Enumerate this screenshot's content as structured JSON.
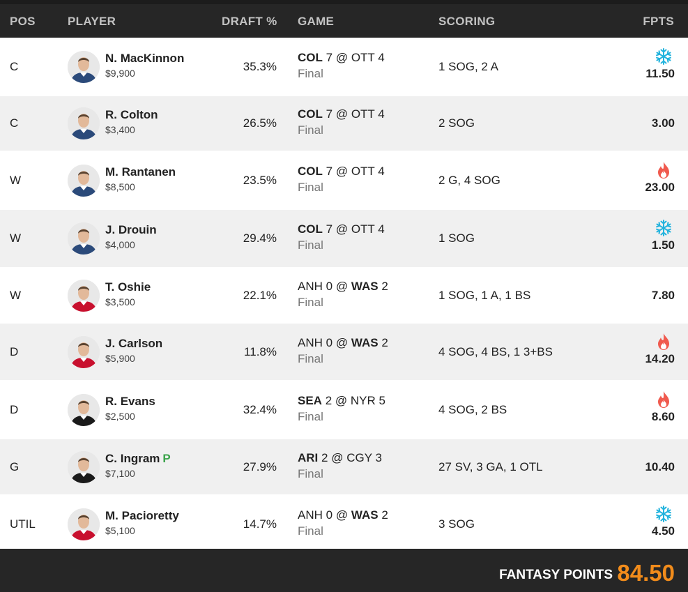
{
  "header": {
    "pos": "POS",
    "player": "PLAYER",
    "draft": "DRAFT %",
    "game": "GAME",
    "scoring": "SCORING",
    "fpts": "FPTS"
  },
  "rows": [
    {
      "pos": "C",
      "name": "N. MacKinnon",
      "badge": "",
      "salary": "$9,900",
      "draft": "35.3%",
      "away": "COL",
      "away_score": "7",
      "at": "@",
      "home": "OTT",
      "home_score": "4",
      "winner": "away",
      "status": "Final",
      "scoring": "1 SOG, 2 A",
      "fpts": "11.50",
      "icon": "snowflake-icon",
      "jersey": "#2b4a7a"
    },
    {
      "pos": "C",
      "name": "R. Colton",
      "badge": "",
      "salary": "$3,400",
      "draft": "26.5%",
      "away": "COL",
      "away_score": "7",
      "at": "@",
      "home": "OTT",
      "home_score": "4",
      "winner": "away",
      "status": "Final",
      "scoring": "2 SOG",
      "fpts": "3.00",
      "icon": "",
      "jersey": "#2b4a7a"
    },
    {
      "pos": "W",
      "name": "M. Rantanen",
      "badge": "",
      "salary": "$8,500",
      "draft": "23.5%",
      "away": "COL",
      "away_score": "7",
      "at": "@",
      "home": "OTT",
      "home_score": "4",
      "winner": "away",
      "status": "Final",
      "scoring": "2 G, 4 SOG",
      "fpts": "23.00",
      "icon": "flame-icon",
      "jersey": "#2b4a7a"
    },
    {
      "pos": "W",
      "name": "J. Drouin",
      "badge": "",
      "salary": "$4,000",
      "draft": "29.4%",
      "away": "COL",
      "away_score": "7",
      "at": "@",
      "home": "OTT",
      "home_score": "4",
      "winner": "away",
      "status": "Final",
      "scoring": "1 SOG",
      "fpts": "1.50",
      "icon": "snowflake-icon",
      "jersey": "#2b4a7a"
    },
    {
      "pos": "W",
      "name": "T. Oshie",
      "badge": "",
      "salary": "$3,500",
      "draft": "22.1%",
      "away": "ANH",
      "away_score": "0",
      "at": "@",
      "home": "WAS",
      "home_score": "2",
      "winner": "home",
      "status": "Final",
      "scoring": "1 SOG, 1 A, 1 BS",
      "fpts": "7.80",
      "icon": "",
      "jersey": "#c8102e"
    },
    {
      "pos": "D",
      "name": "J. Carlson",
      "badge": "",
      "salary": "$5,900",
      "draft": "11.8%",
      "away": "ANH",
      "away_score": "0",
      "at": "@",
      "home": "WAS",
      "home_score": "2",
      "winner": "home",
      "status": "Final",
      "scoring": "4 SOG, 4 BS, 1 3+BS",
      "fpts": "14.20",
      "icon": "flame-icon",
      "jersey": "#c8102e"
    },
    {
      "pos": "D",
      "name": "R. Evans",
      "badge": "",
      "salary": "$2,500",
      "draft": "32.4%",
      "away": "SEA",
      "away_score": "2",
      "at": "@",
      "home": "NYR",
      "home_score": "5",
      "winner": "away",
      "status": "Final",
      "scoring": "4 SOG, 2 BS",
      "fpts": "8.60",
      "icon": "flame-icon",
      "jersey": "#1a1a1a"
    },
    {
      "pos": "G",
      "name": "C. Ingram",
      "badge": "P",
      "salary": "$7,100",
      "draft": "27.9%",
      "away": "ARI",
      "away_score": "2",
      "at": "@",
      "home": "CGY",
      "home_score": "3",
      "winner": "away",
      "status": "Final",
      "scoring": "27 SV, 3 GA, 1 OTL",
      "fpts": "10.40",
      "icon": "",
      "jersey": "#1a1a1a"
    },
    {
      "pos": "UTIL",
      "name": "M. Pacioretty",
      "badge": "",
      "salary": "$5,100",
      "draft": "14.7%",
      "away": "ANH",
      "away_score": "0",
      "at": "@",
      "home": "WAS",
      "home_score": "2",
      "winner": "home",
      "status": "Final",
      "scoring": "3 SOG",
      "fpts": "4.50",
      "icon": "snowflake-icon",
      "jersey": "#c8102e"
    }
  ],
  "footer": {
    "label": "FANTASY POINTS",
    "total": "84.50"
  },
  "colors": {
    "header_bg": "#262626",
    "accent_total": "#f28c1b",
    "snowflake": "#22b3dd",
    "flame": "#f05a4e",
    "badge": "#3aa34a"
  }
}
